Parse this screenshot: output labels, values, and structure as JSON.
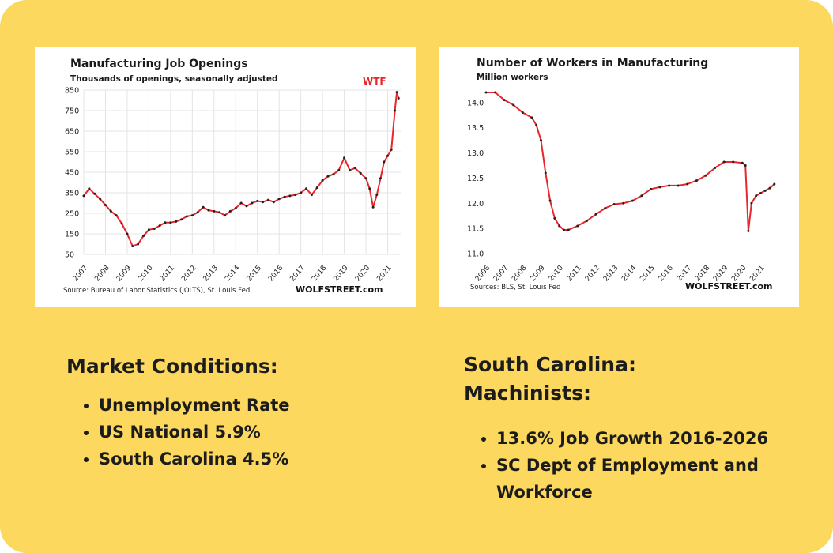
{
  "colors": {
    "background": "#fcd95e",
    "line": "#e8262b",
    "marker": "#222222",
    "text": "#1c1c1c"
  },
  "chart_data": [
    {
      "type": "line",
      "title": "Manufacturing  Job Openings",
      "subtitle": "Thousands of openings, seasonally adjusted",
      "annotation": "WTF",
      "source": "Source: Bureau of Labor Statistics (JOLTS), St. Louis Fed",
      "brand": "WOLFSTREET.com",
      "ylim": [
        50,
        850
      ],
      "yticks": [
        "850",
        "750",
        "650",
        "550",
        "450",
        "350",
        "250",
        "150",
        "50"
      ],
      "xlim": [
        2007,
        2021.6
      ],
      "xticks": [
        "2007",
        "2008",
        "2009",
        "2010",
        "2011",
        "2012",
        "2013",
        "2014",
        "2015",
        "2016",
        "2017",
        "2018",
        "2019",
        "2020",
        "2021"
      ],
      "grid": true,
      "x": [
        2007.0,
        2007.25,
        2007.5,
        2007.75,
        2008.0,
        2008.25,
        2008.5,
        2008.75,
        2009.0,
        2009.25,
        2009.5,
        2009.75,
        2010.0,
        2010.25,
        2010.5,
        2010.75,
        2011.0,
        2011.25,
        2011.5,
        2011.75,
        2012.0,
        2012.25,
        2012.5,
        2012.75,
        2013.0,
        2013.25,
        2013.5,
        2013.75,
        2014.0,
        2014.25,
        2014.5,
        2014.75,
        2015.0,
        2015.25,
        2015.5,
        2015.75,
        2016.0,
        2016.25,
        2016.5,
        2016.75,
        2017.0,
        2017.25,
        2017.5,
        2017.75,
        2018.0,
        2018.25,
        2018.5,
        2018.75,
        2019.0,
        2019.25,
        2019.5,
        2019.75,
        2020.0,
        2020.17,
        2020.33,
        2020.5,
        2020.67,
        2020.83,
        2021.0,
        2021.17,
        2021.33,
        2021.42,
        2021.5
      ],
      "values": [
        335,
        370,
        345,
        320,
        290,
        260,
        240,
        200,
        150,
        90,
        100,
        140,
        170,
        175,
        190,
        205,
        205,
        210,
        220,
        235,
        240,
        255,
        280,
        265,
        260,
        255,
        240,
        260,
        275,
        300,
        285,
        300,
        310,
        305,
        315,
        305,
        320,
        330,
        335,
        340,
        350,
        370,
        340,
        375,
        410,
        430,
        440,
        460,
        520,
        460,
        470,
        445,
        420,
        370,
        280,
        340,
        420,
        500,
        530,
        560,
        750,
        840,
        810
      ]
    },
    {
      "type": "line",
      "title": "Number of Workers in Manufacturing",
      "subtitle": "Million workers",
      "source": "Sources: BLS, St. Louis Fed",
      "brand": "WOLFSTREET.com",
      "ylim": [
        11.0,
        14.2
      ],
      "yticks": [
        "14.0",
        "13.5",
        "13.0",
        "12.5",
        "12.0",
        "11.5",
        "11.0"
      ],
      "xlim": [
        2006,
        2021.8
      ],
      "xticks": [
        "2006",
        "2007",
        "2008",
        "2009",
        "2010",
        "2011",
        "2012",
        "2013",
        "2014",
        "2015",
        "2016",
        "2017",
        "2018",
        "2019",
        "2020",
        "2021"
      ],
      "grid": false,
      "x": [
        2006.0,
        2006.5,
        2007.0,
        2007.5,
        2008.0,
        2008.5,
        2008.75,
        2009.0,
        2009.25,
        2009.5,
        2009.75,
        2010.0,
        2010.25,
        2010.5,
        2011.0,
        2011.5,
        2012.0,
        2012.5,
        2013.0,
        2013.5,
        2014.0,
        2014.5,
        2015.0,
        2015.5,
        2016.0,
        2016.5,
        2017.0,
        2017.5,
        2018.0,
        2018.5,
        2019.0,
        2019.5,
        2020.0,
        2020.17,
        2020.33,
        2020.5,
        2020.75,
        2021.0,
        2021.25,
        2021.5,
        2021.75
      ],
      "values": [
        14.2,
        14.2,
        14.05,
        13.95,
        13.8,
        13.7,
        13.55,
        13.25,
        12.6,
        12.05,
        11.7,
        11.55,
        11.47,
        11.47,
        11.55,
        11.65,
        11.78,
        11.9,
        11.98,
        12.0,
        12.05,
        12.15,
        12.28,
        12.32,
        12.35,
        12.35,
        12.38,
        12.45,
        12.55,
        12.7,
        12.82,
        12.82,
        12.8,
        12.75,
        11.45,
        12.0,
        12.15,
        12.2,
        12.25,
        12.3,
        12.38
      ]
    }
  ],
  "left_section": {
    "heading": "Market Conditions:",
    "items": [
      "Unemployment Rate",
      "US National 5.9%",
      "South Carolina 4.5%"
    ]
  },
  "right_section": {
    "heading_line1": "South Carolina:",
    "heading_line2": "Machinists:",
    "items": [
      "13.6% Job Growth 2016-2026",
      "SC Dept of Employment and Workforce"
    ]
  }
}
